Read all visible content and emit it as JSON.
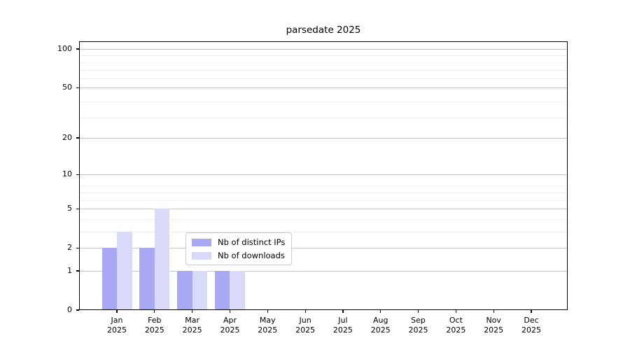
{
  "title": "parsedate 2025",
  "chart_data": {
    "type": "bar",
    "title": "parsedate 2025",
    "x_categories": [
      {
        "month": "Jan",
        "year": "2025"
      },
      {
        "month": "Feb",
        "year": "2025"
      },
      {
        "month": "Mar",
        "year": "2025"
      },
      {
        "month": "Apr",
        "year": "2025"
      },
      {
        "month": "May",
        "year": "2025"
      },
      {
        "month": "Jun",
        "year": "2025"
      },
      {
        "month": "Jul",
        "year": "2025"
      },
      {
        "month": "Aug",
        "year": "2025"
      },
      {
        "month": "Sep",
        "year": "2025"
      },
      {
        "month": "Oct",
        "year": "2025"
      },
      {
        "month": "Nov",
        "year": "2025"
      },
      {
        "month": "Dec",
        "year": "2025"
      }
    ],
    "series": [
      {
        "name": "Nb of distinct IPs",
        "color": "#a8a8f5",
        "values": [
          2,
          2,
          1,
          1,
          0,
          0,
          0,
          0,
          0,
          0,
          0,
          0
        ]
      },
      {
        "name": "Nb of downloads",
        "color": "#d9d9fa",
        "values": [
          3,
          5,
          1,
          1,
          0,
          0,
          0,
          0,
          0,
          0,
          0,
          0
        ]
      }
    ],
    "y_scale": "log1p",
    "y_ticks": [
      0,
      1,
      2,
      5,
      10,
      20,
      50,
      100
    ],
    "y_minor_gridlines": [
      3,
      4,
      6,
      7,
      8,
      19,
      29,
      39,
      49,
      59,
      69,
      79,
      89
    ],
    "ylim": [
      0,
      115
    ],
    "grid": true,
    "legend_position": "inside lower center"
  },
  "legend": {
    "items": [
      {
        "label": "Nb of distinct IPs",
        "color": "#a8a8f5"
      },
      {
        "label": "Nb of downloads",
        "color": "#d9d9fa"
      }
    ]
  },
  "colors": {
    "background": "#ffffff",
    "axis": "#000000",
    "grid_major": "#c6c6c6",
    "grid_minor": "#ededed",
    "bar_distinct_ips": "#a8a8f5",
    "bar_downloads": "#d9d9fa"
  }
}
